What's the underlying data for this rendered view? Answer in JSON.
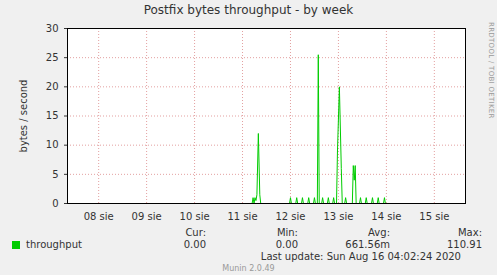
{
  "chart_data": {
    "type": "line",
    "title": "Postfix bytes throughput - by week",
    "y_label": "bytes / second",
    "x": [
      7.85,
      11.58,
      11.6,
      11.7,
      11.72,
      11.74,
      11.76,
      11.78,
      11.8,
      11.83,
      11.86,
      11.88,
      12.48,
      12.5,
      12.52,
      12.61,
      12.63,
      12.65,
      12.73,
      12.75,
      12.77,
      12.86,
      12.88,
      12.9,
      12.98,
      13.0,
      13.02,
      13.06,
      13.08,
      13.1,
      13.15,
      13.17,
      13.19,
      13.27,
      13.29,
      13.31,
      13.38,
      13.4,
      13.42,
      13.46,
      13.48,
      13.52,
      13.56,
      13.58,
      13.63,
      13.65,
      13.67,
      13.79,
      13.81,
      13.83,
      13.85,
      13.87,
      13.94,
      13.96,
      13.98,
      14.06,
      14.08,
      14.1,
      14.19,
      14.21,
      14.23,
      14.31,
      14.33,
      14.35,
      14.44,
      14.46,
      14.48,
      16.15
    ],
    "series": [
      {
        "name": "throughput",
        "color": "#00cc00",
        "values": [
          null,
          null,
          0,
          0,
          1,
          0,
          1,
          0.5,
          1.5,
          12,
          1.5,
          0,
          0,
          1,
          0,
          0,
          1,
          0,
          0,
          1,
          0,
          0,
          1,
          0,
          0,
          1,
          0,
          0,
          25.5,
          0,
          0,
          1,
          0,
          0,
          1,
          0,
          0,
          1,
          0,
          0,
          9,
          20,
          6,
          0,
          0,
          1,
          0,
          0,
          6.5,
          4,
          6.5,
          0,
          0,
          1,
          0,
          0,
          1,
          0,
          0,
          1,
          0,
          0,
          1,
          0,
          0,
          1,
          0,
          0
        ]
      }
    ],
    "xlim": [
      7.85,
      16.15
    ],
    "xticks": [
      {
        "value": 8.5,
        "label": "08 sie"
      },
      {
        "value": 9.5,
        "label": "09 sie"
      },
      {
        "value": 10.5,
        "label": "10 sie"
      },
      {
        "value": 11.5,
        "label": "11 sie"
      },
      {
        "value": 12.5,
        "label": "12 sie"
      },
      {
        "value": 13.5,
        "label": "13 sie"
      },
      {
        "value": 14.5,
        "label": "14 sie"
      },
      {
        "value": 15.5,
        "label": "15 sie"
      }
    ],
    "ylim": [
      0,
      30
    ],
    "yticks": [
      0,
      5,
      10,
      15,
      20,
      25,
      30
    ],
    "grid": true,
    "legend": "bottom left",
    "stats": {
      "headers": [
        "Cur:",
        "Min:",
        "Avg:",
        "Max:"
      ],
      "rows": [
        [
          "0.00",
          "0.00",
          "661.56m",
          "110.91"
        ]
      ]
    },
    "footer": "Last update: Sun Aug 16 04:02:24 2020",
    "side_text": "RRDTOOL / TOBI OETIKER",
    "credit": "Munin 2.0.49"
  }
}
